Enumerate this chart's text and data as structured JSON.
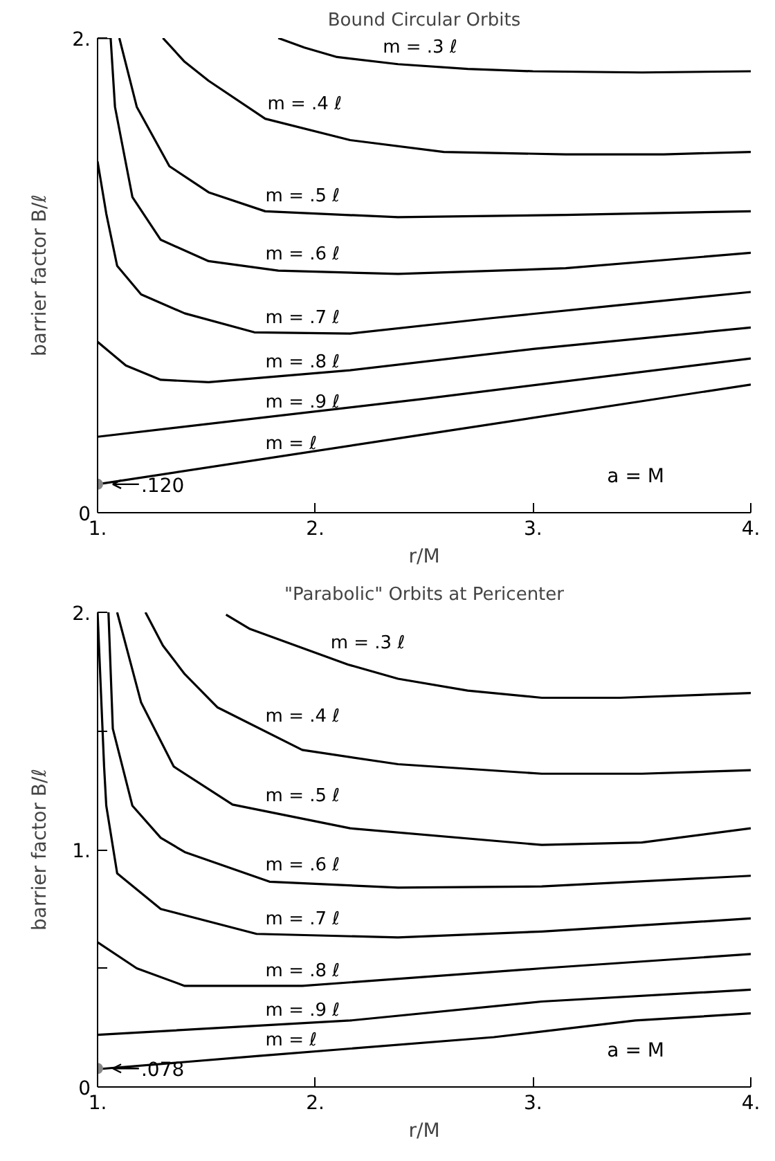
{
  "chart_data": [
    {
      "type": "line",
      "title": "Bound Circular Orbits",
      "xlabel": "r/M",
      "ylabel": "barrier factor B/ℓ",
      "xlim": [
        1,
        4
      ],
      "ylim": [
        0,
        2
      ],
      "xticks": [
        {
          "value": 1,
          "label": "1."
        },
        {
          "value": 2,
          "label": "2."
        },
        {
          "value": 3,
          "label": "3."
        },
        {
          "value": 4,
          "label": "4."
        }
      ],
      "yticks": [
        0,
        {
          "value": 2,
          "label": "2."
        }
      ],
      "grid": false,
      "line_style": "solid",
      "series": [
        {
          "name": "m = .3 ℓ",
          "color": "#000000",
          "x": [
            1.83,
            1.95,
            2.1,
            2.38,
            2.7,
            3.0,
            3.5,
            4.0
          ],
          "values": [
            2.0,
            1.96,
            1.92,
            1.89,
            1.87,
            1.86,
            1.855,
            1.86
          ]
        },
        {
          "name": "m = .4 ℓ",
          "color": "#000000",
          "x": [
            1.3,
            1.4,
            1.51,
            1.77,
            2.16,
            2.59,
            3.15,
            3.6,
            4.0
          ],
          "values": [
            2.0,
            1.9,
            1.82,
            1.66,
            1.57,
            1.52,
            1.51,
            1.51,
            1.52
          ]
        },
        {
          "name": "m = .5 ℓ",
          "color": "#000000",
          "x": [
            1.1,
            1.18,
            1.33,
            1.51,
            1.77,
            2.38,
            3.15,
            4.0
          ],
          "values": [
            2.0,
            1.71,
            1.46,
            1.35,
            1.27,
            1.245,
            1.255,
            1.27
          ]
        },
        {
          "name": "m = .6 ℓ",
          "color": "#000000",
          "x": [
            1.0,
            1.06,
            1.08,
            1.16,
            1.29,
            1.51,
            1.83,
            2.38,
            3.15,
            4.0
          ],
          "values": [
            2.0,
            2.0,
            1.71,
            1.33,
            1.15,
            1.06,
            1.02,
            1.006,
            1.03,
            1.095
          ]
        },
        {
          "name": "m = .7 ℓ",
          "color": "#000000",
          "x": [
            1.0,
            1.04,
            1.09,
            1.2,
            1.4,
            1.72,
            2.16,
            2.81,
            3.4,
            4.0
          ],
          "values": [
            1.48,
            1.26,
            1.04,
            0.92,
            0.84,
            0.76,
            0.755,
            0.82,
            0.875,
            0.93
          ]
        },
        {
          "name": "m = .8 ℓ",
          "color": "#000000",
          "x": [
            1.0,
            1.13,
            1.29,
            1.51,
            2.16,
            3.0,
            4.0
          ],
          "values": [
            0.72,
            0.62,
            0.56,
            0.55,
            0.6,
            0.69,
            0.78
          ]
        },
        {
          "name": "m = .9 ℓ",
          "color": "#000000",
          "x": [
            1.0,
            2.5,
            4.0
          ],
          "values": [
            0.32,
            0.48,
            0.65
          ]
        },
        {
          "name": "m = ℓ",
          "color": "#000000",
          "x": [
            1.0,
            2.5,
            4.0
          ],
          "values": [
            0.12,
            0.33,
            0.54
          ]
        }
      ],
      "annotations": [
        {
          "text": ".120",
          "x": 1,
          "y": 0.12
        },
        "a = M"
      ]
    },
    {
      "type": "line",
      "title": "\"Parabolic\" Orbits at Pericenter",
      "xlabel": "r/M",
      "ylabel": "barrier factor B/ℓ",
      "xlim": [
        1,
        4
      ],
      "ylim": [
        0,
        2
      ],
      "xticks": [
        {
          "value": 1,
          "label": "1."
        },
        {
          "value": 2,
          "label": "2."
        },
        {
          "value": 3,
          "label": "3."
        },
        {
          "value": 4,
          "label": "4."
        }
      ],
      "yticks": [
        0,
        {
          "value": 0.5,
          "label": null
        },
        {
          "value": 1,
          "label": "1."
        },
        {
          "value": 1.5,
          "label": null
        },
        {
          "value": 2,
          "label": "2."
        }
      ],
      "grid": false,
      "line_style": "solid",
      "series": [
        {
          "name": "m = .3 ℓ",
          "color": "#000000",
          "x": [
            1.59,
            1.7,
            1.94,
            2.15,
            2.38,
            2.7,
            3.04,
            3.4,
            4.0
          ],
          "values": [
            1.99,
            1.93,
            1.85,
            1.78,
            1.72,
            1.67,
            1.64,
            1.64,
            1.66
          ]
        },
        {
          "name": "m = .4 ℓ",
          "color": "#000000",
          "x": [
            1.22,
            1.3,
            1.4,
            1.55,
            1.94,
            2.38,
            3.04,
            3.5,
            4.0
          ],
          "values": [
            2.0,
            1.86,
            1.74,
            1.6,
            1.42,
            1.36,
            1.32,
            1.32,
            1.335
          ]
        },
        {
          "name": "m = .5 ℓ",
          "color": "#000000",
          "x": [
            1.09,
            1.2,
            1.35,
            1.62,
            2.16,
            3.04,
            3.5,
            4.0
          ],
          "values": [
            2.0,
            1.62,
            1.35,
            1.19,
            1.09,
            1.02,
            1.03,
            1.09
          ]
        },
        {
          "name": "m = .6 ℓ",
          "color": "#000000",
          "x": [
            1.05,
            1.07,
            1.16,
            1.29,
            1.4,
            1.79,
            2.38,
            3.04,
            4.0
          ],
          "values": [
            2.0,
            1.51,
            1.185,
            1.05,
            0.99,
            0.865,
            0.84,
            0.845,
            0.89
          ]
        },
        {
          "name": "m = .7 ℓ",
          "color": "#000000",
          "x": [
            1.0,
            1.03,
            1.04,
            1.09,
            1.29,
            1.73,
            2.38,
            3.04,
            4.0
          ],
          "values": [
            2.0,
            1.35,
            1.185,
            0.9,
            0.75,
            0.645,
            0.63,
            0.655,
            0.71
          ]
        },
        {
          "name": "m = .8 ℓ",
          "color": "#000000",
          "x": [
            1.0,
            1.18,
            1.4,
            1.94,
            3.04,
            4.0
          ],
          "values": [
            0.61,
            0.5,
            0.426,
            0.426,
            0.5,
            0.56
          ]
        },
        {
          "name": "m = .9 ℓ",
          "color": "#000000",
          "x": [
            1.0,
            2.16,
            3.04,
            4.0
          ],
          "values": [
            0.22,
            0.28,
            0.36,
            0.41
          ]
        },
        {
          "name": "m = ℓ",
          "color": "#000000",
          "x": [
            1.0,
            1.73,
            2.82,
            3.47,
            4.0
          ],
          "values": [
            0.075,
            0.13,
            0.21,
            0.28,
            0.31
          ]
        }
      ],
      "annotations": [
        {
          "text": ".078",
          "x": 1,
          "y": 0.078
        },
        "a = M"
      ]
    }
  ]
}
